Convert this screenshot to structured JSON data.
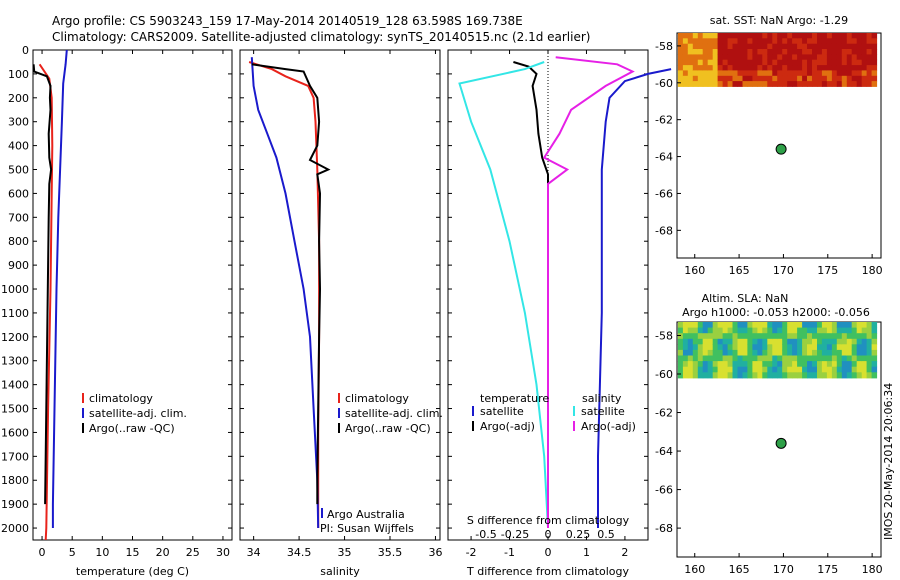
{
  "header": {
    "line1": "Argo profile: CS 5903243_159 17-May-2014 20140519_128 63.598S 169.738E",
    "line2": "Climatology: CARS2009. Satellite-adjusted climatology: synTS_20140515.nc (2.1d earlier)"
  },
  "footer_vertical": "IMOS 20-May-2014 20:06:34",
  "colors": {
    "climatology": "#e8231b",
    "satellite": "#1a1acc",
    "argo": "#000000",
    "cyan": "#33e6e6",
    "magenta": "#e620e6"
  },
  "chart_data": [
    {
      "type": "line",
      "panel": "temperature",
      "xlabel": "temperature (deg C)",
      "xlim": [
        -1.5,
        31.5
      ],
      "xticks": [
        0,
        5,
        10,
        15,
        20,
        25,
        30
      ],
      "ylim": [
        2050,
        0
      ],
      "yticks": [
        0,
        100,
        200,
        300,
        400,
        500,
        600,
        700,
        800,
        900,
        1000,
        1100,
        1200,
        1300,
        1400,
        1500,
        1600,
        1700,
        1800,
        1900,
        2000
      ],
      "legend": [
        "climatology",
        "satellite-adj. clim.",
        "Argo(..raw -QC)"
      ],
      "series": [
        {
          "name": "climatology",
          "color": "climatology",
          "points": [
            [
              -0.4,
              60
            ],
            [
              1.2,
              120
            ],
            [
              1.6,
              200
            ],
            [
              1.7,
              400
            ],
            [
              1.6,
              600
            ],
            [
              1.4,
              1000
            ],
            [
              1.0,
              1500
            ],
            [
              0.7,
              2000
            ],
            [
              0.6,
              2050
            ]
          ]
        },
        {
          "name": "satellite-adj. clim.",
          "color": "satellite",
          "points": [
            [
              4.1,
              0
            ],
            [
              3.9,
              60
            ],
            [
              3.5,
              140
            ],
            [
              3.3,
              300
            ],
            [
              3.0,
              500
            ],
            [
              2.7,
              700
            ],
            [
              2.4,
              1000
            ],
            [
              2.2,
              1300
            ],
            [
              2.0,
              1600
            ],
            [
              1.8,
              1900
            ],
            [
              1.8,
              2000
            ]
          ]
        },
        {
          "name": "Argo(..raw -QC)",
          "color": "argo",
          "points": [
            [
              -1.4,
              60
            ],
            [
              -1.3,
              90
            ],
            [
              0.8,
              110
            ],
            [
              1.4,
              150
            ],
            [
              1.3,
              200
            ],
            [
              1.4,
              250
            ],
            [
              1.1,
              350
            ],
            [
              1.2,
              450
            ],
            [
              1.5,
              500
            ],
            [
              1.2,
              560
            ],
            [
              1.1,
              700
            ],
            [
              1.0,
              900
            ],
            [
              0.9,
              1100
            ],
            [
              0.8,
              1300
            ],
            [
              0.7,
              1500
            ],
            [
              0.6,
              1700
            ],
            [
              0.5,
              1900
            ]
          ]
        }
      ]
    },
    {
      "type": "line",
      "panel": "salinity",
      "xlabel": "salinity",
      "xlim": [
        33.85,
        36.05
      ],
      "xticks": [
        34,
        34.5,
        35,
        35.5,
        36
      ],
      "ylim": [
        2050,
        0
      ],
      "legend": [
        "climatology",
        "satellite-adj. clim.",
        "Argo(..raw -QC)"
      ],
      "annotation": [
        "Argo Australia",
        "PI: Susan Wijffels"
      ],
      "series": [
        {
          "name": "climatology",
          "color": "climatology",
          "points": [
            [
              33.95,
              50
            ],
            [
              34.2,
              80
            ],
            [
              34.35,
              110
            ],
            [
              34.6,
              150
            ],
            [
              34.66,
              200
            ],
            [
              34.68,
              300
            ],
            [
              34.7,
              500
            ],
            [
              34.72,
              800
            ],
            [
              34.72,
              1200
            ],
            [
              34.71,
              1600
            ],
            [
              34.71,
              2000
            ]
          ]
        },
        {
          "name": "satellite-adj. clim.",
          "color": "satellite",
          "points": [
            [
              33.98,
              30
            ],
            [
              34.0,
              150
            ],
            [
              34.05,
              250
            ],
            [
              34.15,
              350
            ],
            [
              34.25,
              450
            ],
            [
              34.35,
              600
            ],
            [
              34.45,
              800
            ],
            [
              34.55,
              1000
            ],
            [
              34.62,
              1200
            ],
            [
              34.66,
              1500
            ],
            [
              34.7,
              1800
            ],
            [
              34.71,
              2000
            ]
          ]
        },
        {
          "name": "Argo(..raw -QC)",
          "color": "argo",
          "points": [
            [
              33.98,
              60
            ],
            [
              34.35,
              80
            ],
            [
              34.55,
              90
            ],
            [
              34.62,
              150
            ],
            [
              34.7,
              200
            ],
            [
              34.72,
              300
            ],
            [
              34.7,
              400
            ],
            [
              34.62,
              460
            ],
            [
              34.82,
              500
            ],
            [
              34.7,
              520
            ],
            [
              34.73,
              600
            ],
            [
              34.72,
              800
            ],
            [
              34.73,
              1000
            ],
            [
              34.72,
              1200
            ],
            [
              34.71,
              1500
            ],
            [
              34.7,
              1800
            ],
            [
              34.7,
              1900
            ]
          ]
        }
      ]
    },
    {
      "type": "line",
      "panel": "difference",
      "xlabel": "T difference from climatology",
      "xlabel_top": "S difference from climatology",
      "xlim": [
        -2.6,
        2.6
      ],
      "xticks": [
        -2,
        -1,
        0,
        1,
        2
      ],
      "s_ticks": [
        "-0.5",
        "-0.25",
        "0",
        "0.25",
        "0.5"
      ],
      "ylim": [
        2050,
        0
      ],
      "legend_headers": [
        "temperature",
        "salinity"
      ],
      "legend": [
        "satellite",
        "Argo(-adj)",
        "satellite",
        "Argo(-adj)"
      ],
      "series": [
        {
          "name": "temperature satellite",
          "color": "satellite",
          "points": [
            [
              3.2,
              80
            ],
            [
              2.6,
              100
            ],
            [
              2.0,
              130
            ],
            [
              1.6,
              200
            ],
            [
              1.5,
              300
            ],
            [
              1.4,
              500
            ],
            [
              1.4,
              800
            ],
            [
              1.4,
              1100
            ],
            [
              1.35,
              1400
            ],
            [
              1.3,
              1700
            ],
            [
              1.3,
              2000
            ]
          ]
        },
        {
          "name": "temperature Argo(-adj)",
          "color": "argo",
          "points": [
            [
              -0.9,
              50
            ],
            [
              -0.5,
              70
            ],
            [
              -0.3,
              100
            ],
            [
              -0.4,
              150
            ],
            [
              -0.3,
              250
            ],
            [
              -0.25,
              350
            ],
            [
              -0.15,
              450
            ],
            [
              0.0,
              520
            ],
            [
              0.0,
              700
            ],
            [
              0.0,
              1000
            ],
            [
              0.0,
              1500
            ],
            [
              0.0,
              2000
            ]
          ]
        },
        {
          "name": "salinity satellite",
          "color": "cyan",
          "points": [
            [
              -0.1,
              50
            ],
            [
              -0.6,
              80
            ],
            [
              -2.3,
              140
            ],
            [
              -2.0,
              300
            ],
            [
              -1.5,
              500
            ],
            [
              -1.0,
              800
            ],
            [
              -0.6,
              1100
            ],
            [
              -0.3,
              1400
            ],
            [
              -0.1,
              1700
            ],
            [
              0.0,
              2000
            ]
          ]
        },
        {
          "name": "salinity Argo(-adj)",
          "color": "magenta",
          "points": [
            [
              0.2,
              30
            ],
            [
              1.8,
              60
            ],
            [
              2.2,
              90
            ],
            [
              1.5,
              150
            ],
            [
              0.6,
              250
            ],
            [
              0.3,
              350
            ],
            [
              -0.1,
              450
            ],
            [
              0.5,
              500
            ],
            [
              0.0,
              560
            ],
            [
              0.0,
              800
            ],
            [
              0.0,
              1200
            ],
            [
              0.0,
              1700
            ],
            [
              0.0,
              2000
            ]
          ]
        }
      ]
    },
    {
      "type": "heatmap",
      "panel": "sst_map",
      "title": "sat. SST: NaN Argo: -1.29",
      "xlim": [
        158,
        181
      ],
      "xticks": [
        160,
        165,
        170,
        175,
        180
      ],
      "ylim": [
        -69.5,
        -57.3
      ],
      "yticks": [
        -58,
        -60,
        -62,
        -64,
        -66,
        -68
      ],
      "marker": {
        "lon": 169.738,
        "lat": -63.598
      }
    },
    {
      "type": "heatmap",
      "panel": "sla_map",
      "title": "Altim. SLA: NaN",
      "subtitle": "Argo h1000: -0.053 h2000: -0.056",
      "xlim": [
        158,
        181
      ],
      "xticks": [
        160,
        165,
        170,
        175,
        180
      ],
      "ylim": [
        -69.5,
        -57.3
      ],
      "yticks": [
        -58,
        -60,
        -62,
        -64,
        -66,
        -68
      ],
      "marker": {
        "lon": 169.738,
        "lat": -63.598
      }
    }
  ],
  "labels": {
    "difference_legend": [
      "temperature",
      "salinity",
      "satellite",
      "satellite",
      "Argo(-adj)",
      "Argo(-adj)"
    ]
  }
}
